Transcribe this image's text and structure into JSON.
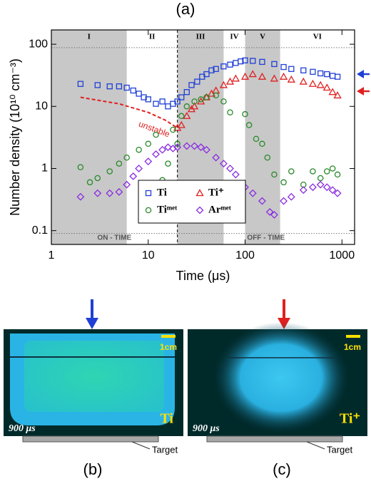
{
  "figure_label": "(a)",
  "chart_data": {
    "type": "scatter",
    "xlabel": "Time (μs)",
    "ylabel": "Number density (10¹⁰ cm⁻³)",
    "log_x": true,
    "log_y": true,
    "xlim": [
      1,
      1350
    ],
    "ylim": [
      0.06,
      170
    ],
    "xticks": [
      1,
      10,
      100,
      1000
    ],
    "yticks": [
      0.1,
      1,
      10,
      100
    ],
    "phase_labels": [
      "I",
      "II",
      "III",
      "IV",
      "V",
      "VI"
    ],
    "phase_bounds": [
      1,
      6,
      20,
      60,
      100,
      230,
      1350
    ],
    "shaded": [
      true,
      false,
      true,
      false,
      true,
      false
    ],
    "shade_color": "#c8c8c8",
    "pulse_end": 20,
    "hlines": [
      88,
      0.09
    ],
    "on_time_label": "ON - TIME",
    "off_time_label": "OFF - TIME",
    "curve_label": "unstable",
    "fit_curve": {
      "color": "#e02020",
      "x": [
        2,
        5,
        10,
        15,
        20
      ],
      "values": [
        14,
        11,
        8,
        6,
        4.5
      ]
    },
    "series": [
      {
        "name": "Ti",
        "color": "#1f3fd6",
        "marker": "square",
        "x": [
          2,
          3,
          4,
          5,
          6,
          7,
          8,
          9,
          10,
          12,
          14,
          16,
          18,
          20,
          22,
          25,
          28,
          32,
          36,
          40,
          45,
          50,
          60,
          70,
          80,
          90,
          100,
          120,
          150,
          200,
          250,
          300,
          400,
          500,
          600,
          700,
          800,
          900
        ],
        "values": [
          23,
          22,
          21,
          21,
          20,
          18,
          16,
          14,
          13,
          11,
          12,
          10,
          11,
          12,
          14,
          17,
          22,
          25,
          30,
          33,
          38,
          40,
          44,
          47,
          50,
          53,
          55,
          54,
          52,
          48,
          43,
          40,
          38,
          36,
          34,
          33,
          31,
          30
        ]
      },
      {
        "name": "Ti⁺",
        "color": "#e02020",
        "marker": "triangle",
        "x": [
          20,
          22,
          25,
          28,
          30,
          35,
          40,
          45,
          50,
          60,
          70,
          80,
          100,
          120,
          150,
          200,
          250,
          300,
          400,
          500,
          600,
          700,
          800,
          900
        ],
        "values": [
          4.5,
          5,
          7,
          9,
          10,
          12,
          14,
          16,
          18,
          22,
          25,
          28,
          30,
          33,
          30,
          28,
          30,
          27,
          25,
          23,
          22,
          20,
          17,
          15
        ]
      },
      {
        "name": "Tiᵐᵉᵗ",
        "color": "#2a8a2a",
        "marker": "circle",
        "x": [
          2,
          2.5,
          3,
          4,
          5,
          6,
          8,
          10,
          12,
          14,
          16,
          18,
          20,
          22,
          25,
          30,
          35,
          40,
          50,
          60,
          70,
          100,
          110,
          130,
          150,
          170,
          200,
          250,
          300,
          400,
          500,
          600,
          700,
          800,
          900
        ],
        "values": [
          1.05,
          0.6,
          0.7,
          0.9,
          1.2,
          1.5,
          2,
          2.5,
          3.5,
          0.65,
          1.2,
          4.2,
          2.5,
          7,
          10,
          12,
          13,
          14,
          15,
          12,
          8,
          7.5,
          5,
          3,
          2.5,
          1.5,
          0.8,
          0.6,
          0.9,
          0.55,
          0.9,
          0.7,
          0.9,
          1.0,
          0.8
        ]
      },
      {
        "name": "Arᵐᵉᵗ",
        "color": "#8a2be2",
        "marker": "diamond",
        "x": [
          2,
          3,
          4,
          5,
          6,
          7,
          8,
          10,
          12,
          14,
          16,
          18,
          20,
          25,
          30,
          35,
          40,
          50,
          60,
          70,
          80,
          100,
          120,
          150,
          180,
          200,
          250,
          300,
          400,
          500,
          600,
          700,
          800,
          900
        ],
        "values": [
          0.35,
          0.4,
          0.4,
          0.42,
          0.55,
          0.75,
          1.0,
          1.3,
          1.7,
          2.0,
          2.2,
          2.1,
          2.2,
          2.3,
          2.3,
          2.2,
          2.0,
          1.5,
          1.2,
          1.0,
          0.8,
          0.5,
          0.4,
          0.3,
          0.2,
          0.18,
          0.3,
          0.35,
          0.45,
          0.5,
          0.55,
          0.5,
          0.45,
          0.4
        ]
      }
    ]
  },
  "panel_b": {
    "label": "(b)",
    "time": "900 μs",
    "species": "Ti",
    "scale": "1cm",
    "target": "Target"
  },
  "panel_c": {
    "label": "(c)",
    "time": "900 μs",
    "species": "Ti⁺",
    "scale": "1cm",
    "target": "Target"
  }
}
